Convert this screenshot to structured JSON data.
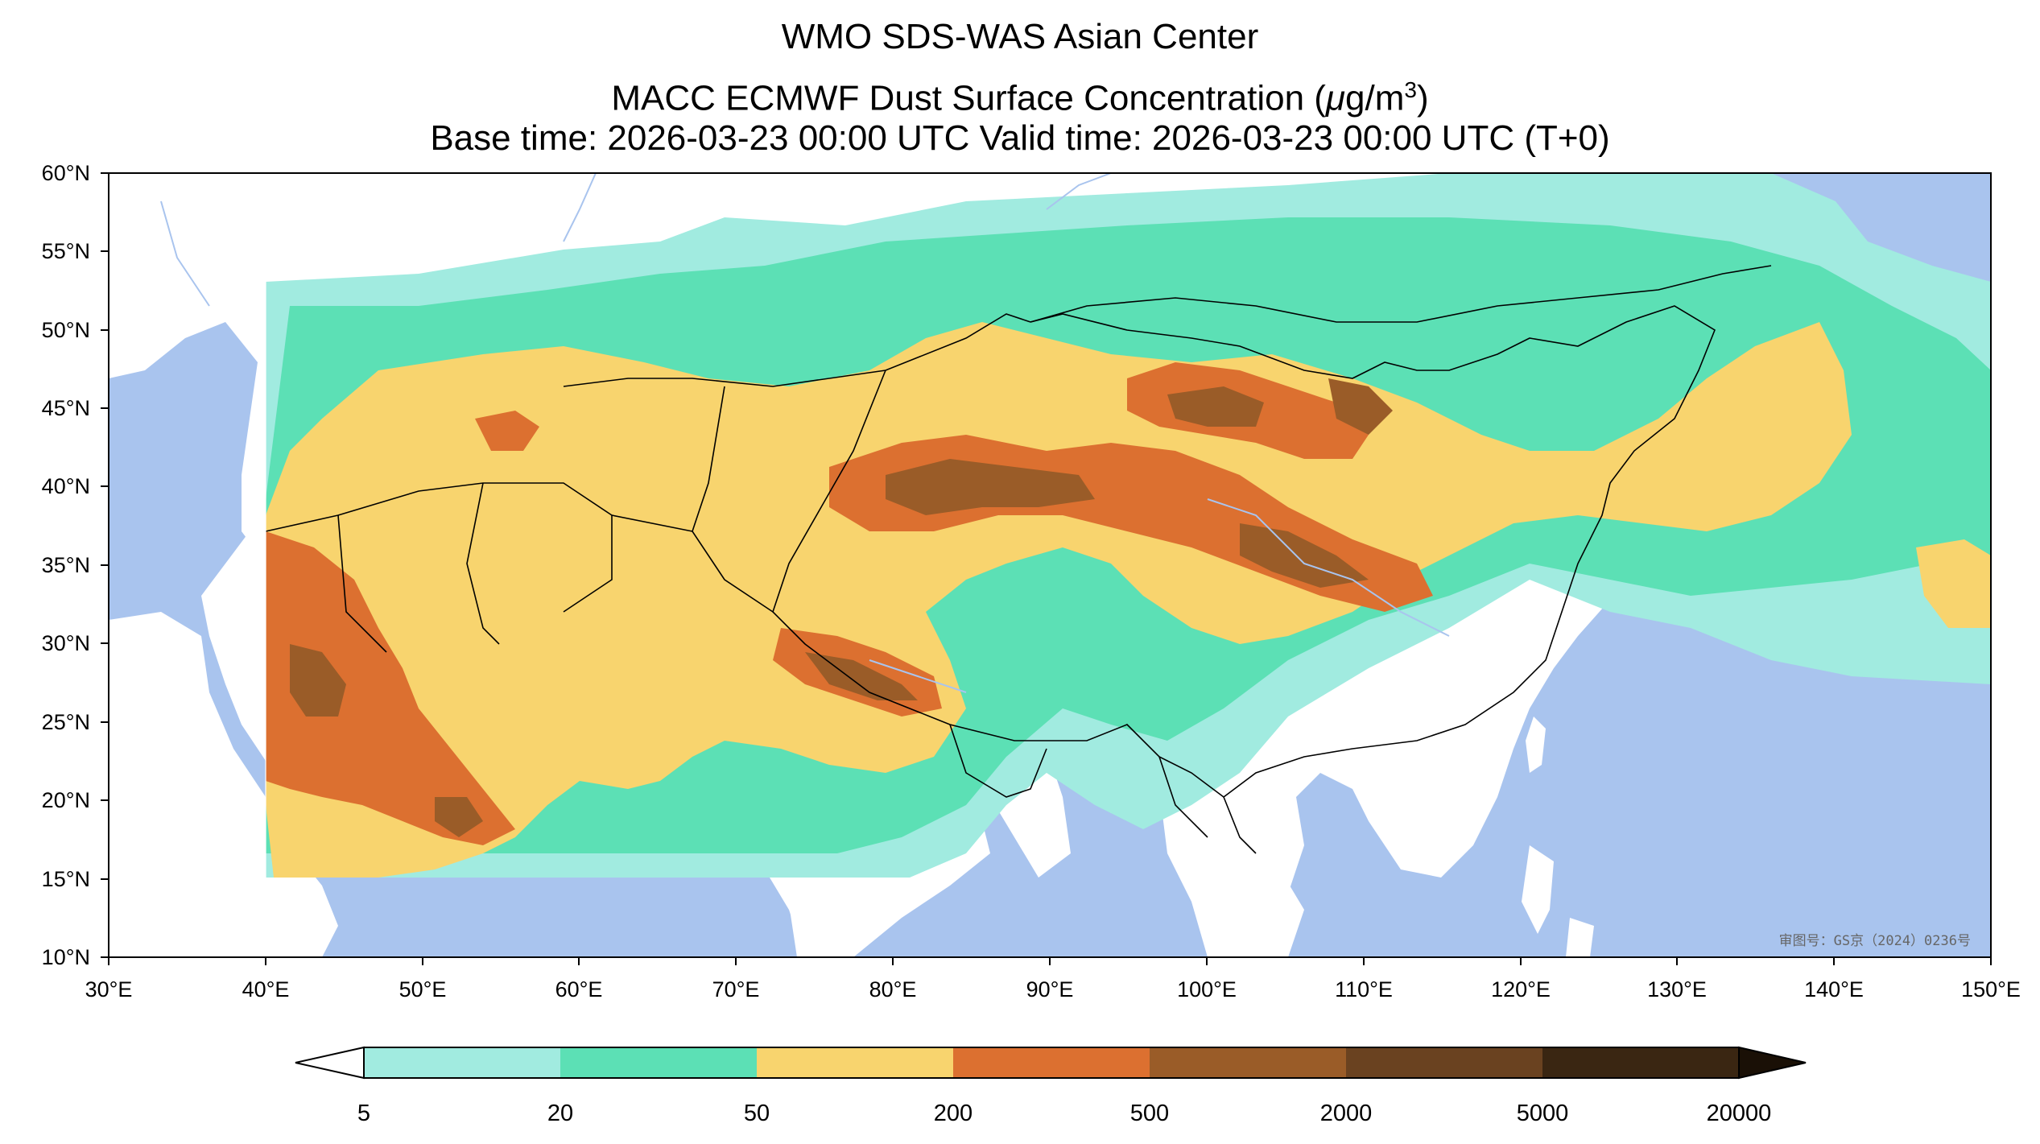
{
  "titles": {
    "line1": "WMO SDS-WAS Asian Center",
    "line2_prefix": "MACC ECMWF Dust Surface Concentration (",
    "line2_unit_mu": "μ",
    "line2_unit_g": "g/m",
    "line2_unit_exp": "3",
    "line2_suffix": ")",
    "line3": "Base time: 2026-03-23 00:00 UTC Valid time: 2026-03-23 00:00 UTC (T+0)"
  },
  "map": {
    "lon_range": [
      30,
      150
    ],
    "lat_range": [
      10,
      60
    ],
    "x_ticks": [
      "30°E",
      "40°E",
      "50°E",
      "60°E",
      "70°E",
      "80°E",
      "90°E",
      "100°E",
      "110°E",
      "120°E",
      "130°E",
      "140°E",
      "150°E"
    ],
    "y_ticks": [
      "10°N",
      "15°N",
      "20°N",
      "25°N",
      "30°N",
      "35°N",
      "40°N",
      "45°N",
      "50°N",
      "55°N",
      "60°N"
    ],
    "watermark": "审图号：GS京（2024）0236号",
    "colors": {
      "ocean": "#a9c4ee",
      "land": "#ffffff",
      "border": "#000000",
      "river": "#a9c4ee"
    }
  },
  "colorbar": {
    "labels": [
      "5",
      "20",
      "50",
      "200",
      "500",
      "2000",
      "5000",
      "20000"
    ],
    "colors": [
      "#a1ebe0",
      "#5ce0b5",
      "#f8d46e",
      "#dc7030",
      "#9a5c28",
      "#6a4220",
      "#3a2612"
    ],
    "under_color": "#ffffff",
    "over_color": "#1a1006"
  }
}
